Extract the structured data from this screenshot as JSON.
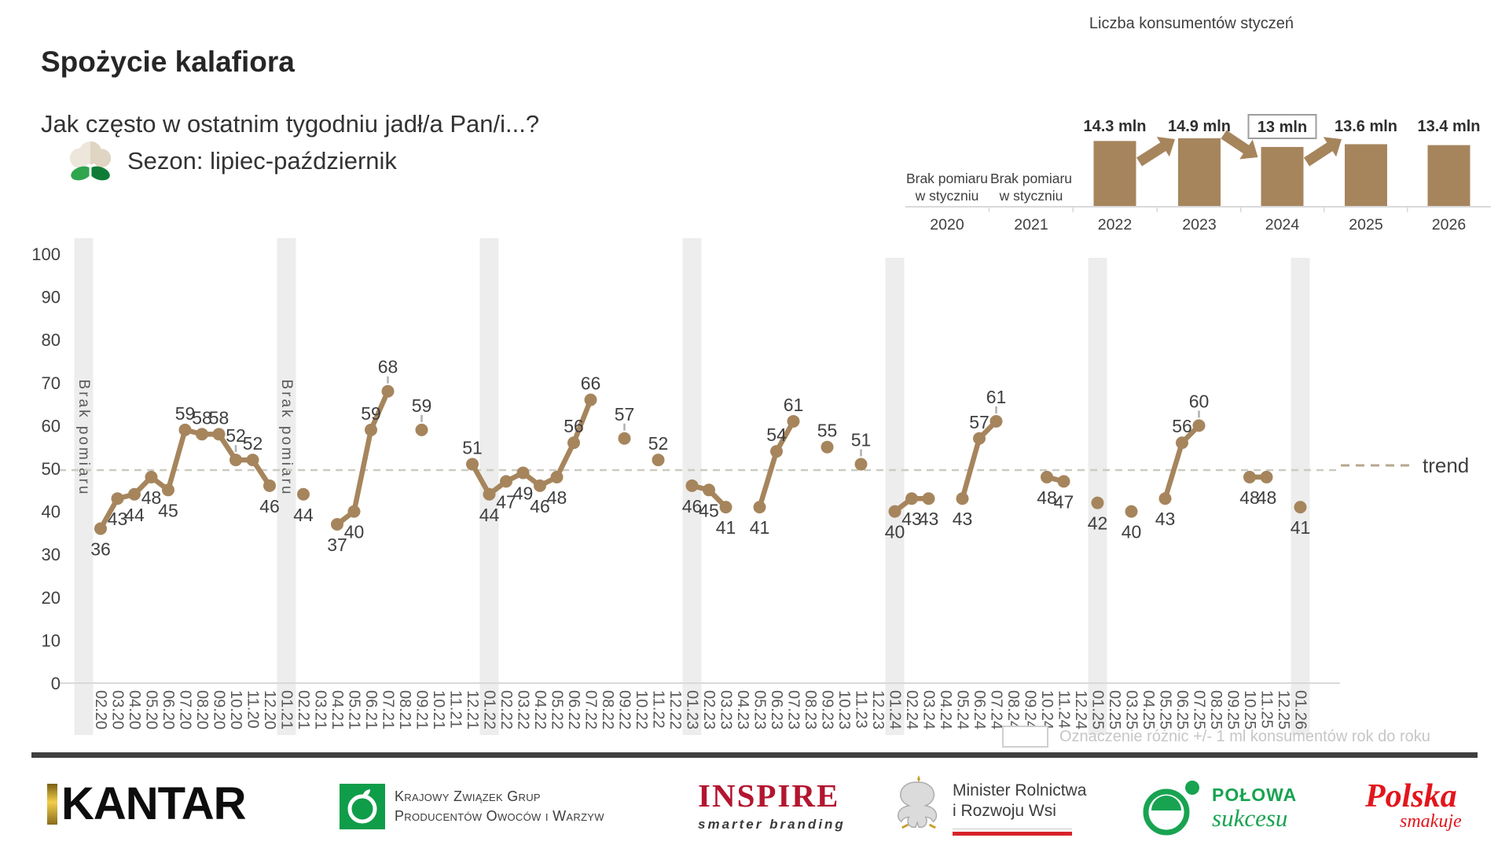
{
  "header": {
    "title": "Spożycie kalafiora",
    "subtitle": "Jak często w ostatnim tygodniu jadł/a Pan/i...?"
  },
  "season": {
    "label": "Sezon: lipiec-październik"
  },
  "mini_chart": {
    "title": "Liczba konsumentów styczeń",
    "no_measure_lines": [
      "Brak pomiaru",
      "w styczniu"
    ],
    "years": [
      {
        "year": "2020",
        "value": null,
        "label": "",
        "no_measure": true,
        "boxed": false,
        "arrow_from_prev": null
      },
      {
        "year": "2021",
        "value": null,
        "label": "",
        "no_measure": true,
        "boxed": false,
        "arrow_from_prev": null
      },
      {
        "year": "2022",
        "value": 14.3,
        "label": "14.3 mln",
        "no_measure": false,
        "boxed": false,
        "arrow_from_prev": null
      },
      {
        "year": "2023",
        "value": 14.9,
        "label": "14.9 mln",
        "no_measure": false,
        "boxed": false,
        "arrow_from_prev": "up"
      },
      {
        "year": "2024",
        "value": 13,
        "label": "13 mln",
        "no_measure": false,
        "boxed": true,
        "arrow_from_prev": "down"
      },
      {
        "year": "2025",
        "value": 13.6,
        "label": "13.6 mln",
        "no_measure": false,
        "boxed": false,
        "arrow_from_prev": "up"
      },
      {
        "year": "2026",
        "value": 13.4,
        "label": "13.4 mln",
        "no_measure": false,
        "boxed": false,
        "arrow_from_prev": null
      }
    ]
  },
  "chart_data": {
    "type": "line",
    "title": "Spożycie kalafiora",
    "ylabel": "",
    "ylim": [
      0,
      100
    ],
    "ytick_step": 10,
    "grid": false,
    "legend_position": "right",
    "trend": {
      "label": "trend",
      "value": 50
    },
    "no_measure_label": "Brak pomiaru",
    "points": [
      {
        "m": "",
        "v": null,
        "band": true,
        "note": "Brak pomiaru"
      },
      {
        "m": "02.20",
        "v": 36
      },
      {
        "m": "03.20",
        "v": 43
      },
      {
        "m": "04.20",
        "v": 44
      },
      {
        "m": "05.20",
        "v": 48
      },
      {
        "m": "06.20",
        "v": 45
      },
      {
        "m": "07.20",
        "v": 59
      },
      {
        "m": "08.20",
        "v": 58
      },
      {
        "m": "09.20",
        "v": 58
      },
      {
        "m": "10.20",
        "v": 52,
        "tick": true
      },
      {
        "m": "11.20",
        "v": 52
      },
      {
        "m": "12.20",
        "v": 46
      },
      {
        "m": "01.21",
        "v": null,
        "band": true,
        "note": "Brak pomiaru"
      },
      {
        "m": "02.21",
        "v": 44
      },
      {
        "m": "03.21",
        "v": null
      },
      {
        "m": "04.21",
        "v": 37
      },
      {
        "m": "05.21",
        "v": 40
      },
      {
        "m": "06.21",
        "v": 59
      },
      {
        "m": "07.21",
        "v": 68,
        "tick": true
      },
      {
        "m": "08.21",
        "v": null
      },
      {
        "m": "09.21",
        "v": 59,
        "tick": true
      },
      {
        "m": "10.21",
        "v": null
      },
      {
        "m": "11.21",
        "v": null
      },
      {
        "m": "12.21",
        "v": 51
      },
      {
        "m": "01.22",
        "v": 44,
        "band": true
      },
      {
        "m": "02.22",
        "v": 47
      },
      {
        "m": "03.22",
        "v": 49
      },
      {
        "m": "04.22",
        "v": 46
      },
      {
        "m": "05.22",
        "v": 48
      },
      {
        "m": "06.22",
        "v": 56
      },
      {
        "m": "07.22",
        "v": 66
      },
      {
        "m": "08.22",
        "v": null
      },
      {
        "m": "09.22",
        "v": 57,
        "tick": true
      },
      {
        "m": "10.22",
        "v": null
      },
      {
        "m": "11.22",
        "v": 52
      },
      {
        "m": "12.22",
        "v": null
      },
      {
        "m": "01.23",
        "v": 46,
        "band": true
      },
      {
        "m": "02.23",
        "v": 45
      },
      {
        "m": "03.23",
        "v": 41
      },
      {
        "m": "04.23",
        "v": null
      },
      {
        "m": "05.23",
        "v": 41
      },
      {
        "m": "06.23",
        "v": 54
      },
      {
        "m": "07.23",
        "v": 61
      },
      {
        "m": "08.23",
        "v": null
      },
      {
        "m": "09.23",
        "v": 55
      },
      {
        "m": "10.23",
        "v": null
      },
      {
        "m": "11.23",
        "v": 51,
        "tick": true
      },
      {
        "m": "12.23",
        "v": null
      },
      {
        "m": "01.24",
        "v": 40,
        "band": true
      },
      {
        "m": "02.24",
        "v": 43
      },
      {
        "m": "03.24",
        "v": 43
      },
      {
        "m": "04.24",
        "v": null
      },
      {
        "m": "05.24",
        "v": 43
      },
      {
        "m": "06.24",
        "v": 57
      },
      {
        "m": "07.24",
        "v": 61,
        "tick": true
      },
      {
        "m": "08.24",
        "v": null
      },
      {
        "m": "09.24",
        "v": null
      },
      {
        "m": "10.24",
        "v": 48
      },
      {
        "m": "11.24",
        "v": 47
      },
      {
        "m": "12.24",
        "v": null
      },
      {
        "m": "01.25",
        "v": 42,
        "band": true
      },
      {
        "m": "02.25",
        "v": null
      },
      {
        "m": "03.25",
        "v": 40
      },
      {
        "m": "04.25",
        "v": null
      },
      {
        "m": "05.25",
        "v": 43
      },
      {
        "m": "06.25",
        "v": 56
      },
      {
        "m": "07.25",
        "v": 60,
        "tick": true
      },
      {
        "m": "08.25",
        "v": null
      },
      {
        "m": "09.25",
        "v": null
      },
      {
        "m": "10.25",
        "v": 48
      },
      {
        "m": "11.25",
        "v": 48
      },
      {
        "m": "12.25",
        "v": null
      },
      {
        "m": "01.26",
        "v": 41,
        "band": true
      }
    ]
  },
  "note": {
    "text": "Oznaczenie różnic +/- 1 ml konsumentów rok do roku"
  },
  "footer": {
    "kantar": {
      "text": "KANTAR"
    },
    "kzgpow": {
      "line1": "Krajowy Związek Grup",
      "line2": "Producentów Owoców i Warzyw"
    },
    "inspire": {
      "text": "INSPIRE",
      "tagline": "smarter branding"
    },
    "minister": {
      "line1": "Minister Rolnictwa",
      "line2": "i Rozwoju Wsi"
    },
    "polowa": {
      "text": "POŁOWA",
      "sub": "sukcesu"
    },
    "polska": {
      "text": "Polska",
      "sub": "smakuje"
    }
  },
  "colors": {
    "brown": "#A6855D",
    "band_gray": "#EDEDED",
    "trend_line": "#CBCBC2",
    "legend_dash": "#B5A88E",
    "kzg_green": "#0F9D49",
    "polowa_green": "#18A351",
    "inspire_red": "#B3152F",
    "polska_red": "#E2161D",
    "minister_red": "#D8232A",
    "kantar_gold": "#F2CE4B"
  }
}
